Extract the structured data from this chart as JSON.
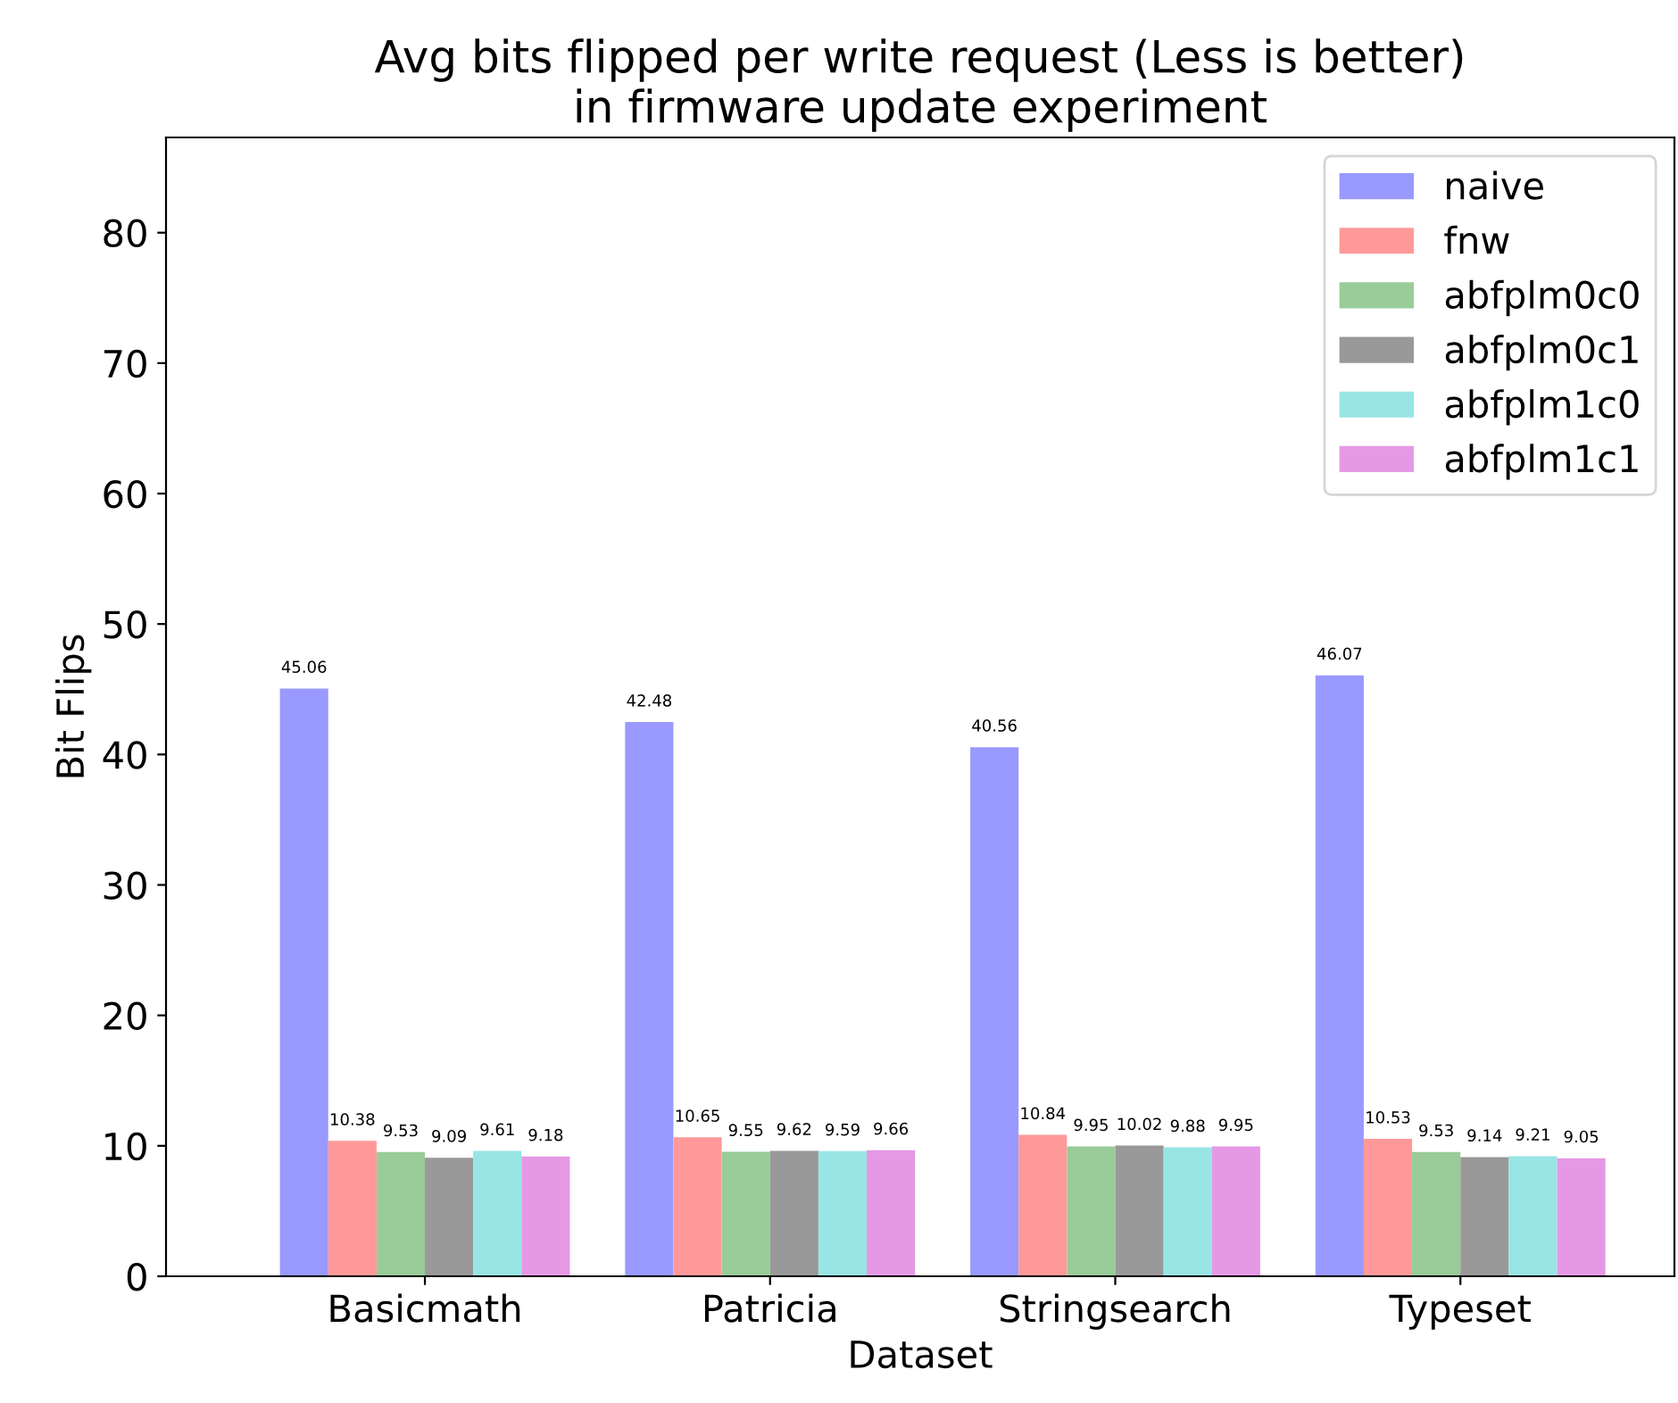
{
  "chart_data": {
    "type": "bar",
    "title": "Avg bits flipped per write request (Less is better)\nin firmware update experiment",
    "xlabel": "Dataset",
    "ylabel": "Bit Flips",
    "categories": [
      "Basicmath",
      "Patricia",
      "Stringsearch",
      "Typeset"
    ],
    "series": [
      {
        "name": "naive",
        "color": "#9999ff",
        "values": [
          45.06,
          42.48,
          40.56,
          46.07
        ]
      },
      {
        "name": "fnw",
        "color": "#ff9999",
        "values": [
          10.38,
          10.65,
          10.84,
          10.53
        ]
      },
      {
        "name": "abfplm0c0",
        "color": "#99cc99",
        "values": [
          9.53,
          9.55,
          9.95,
          9.53
        ]
      },
      {
        "name": "abfplm0c1",
        "color": "#999999",
        "values": [
          9.09,
          9.62,
          10.02,
          9.14
        ]
      },
      {
        "name": "abfplm1c0",
        "color": "#99e5e5",
        "values": [
          9.61,
          9.59,
          9.88,
          9.21
        ]
      },
      {
        "name": "abfplm1c1",
        "color": "#e599e5",
        "values": [
          9.18,
          9.66,
          9.95,
          9.05
        ]
      }
    ],
    "ylim": [
      0,
      87.3
    ],
    "yticks": [
      0,
      10,
      20,
      30,
      40,
      50,
      60,
      70,
      80
    ],
    "grid": false,
    "legend": "top right",
    "data_labels": true
  }
}
